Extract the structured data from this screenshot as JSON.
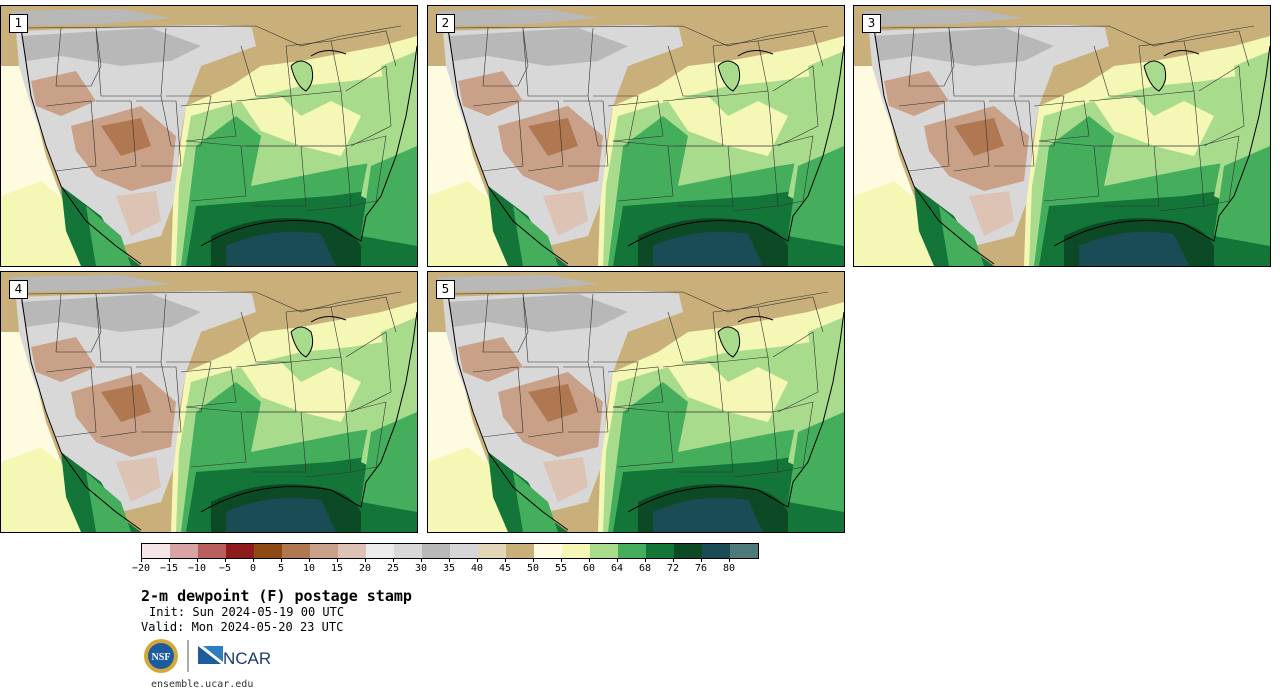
{
  "panels": [
    {
      "label": "1"
    },
    {
      "label": "2"
    },
    {
      "label": "3"
    },
    {
      "label": "4"
    },
    {
      "label": "5"
    }
  ],
  "colorbar": {
    "ticks": [
      "−20",
      "−15",
      "−10",
      "−5",
      "0",
      "5",
      "10",
      "15",
      "20",
      "25",
      "30",
      "35",
      "40",
      "45",
      "50",
      "55",
      "60",
      "64",
      "68",
      "72",
      "76",
      "80"
    ],
    "colors": [
      "#f4e6e6",
      "#d9a3a3",
      "#b86060",
      "#8e1c1c",
      "#8e4a14",
      "#b07850",
      "#c9a088",
      "#ddc3b4",
      "#ececec",
      "#d8d8d8",
      "#b8b8b8",
      "#d6d6d6",
      "#e2d6b8",
      "#c9b07a",
      "#fffbe0",
      "#f5f7b5",
      "#a8dc8c",
      "#44ae5c",
      "#137638",
      "#0b4a25",
      "#1a4c56",
      "#4e7a7a"
    ]
  },
  "title": "2-m dewpoint (F) postage stamp",
  "init": "Init: Sun 2024-05-19 00 UTC",
  "valid": "Valid: Mon 2024-05-20 23 UTC",
  "logos": {
    "nsf": "NSF",
    "ncar": "NCAR"
  },
  "footer": "ensemble.ucar.edu"
}
